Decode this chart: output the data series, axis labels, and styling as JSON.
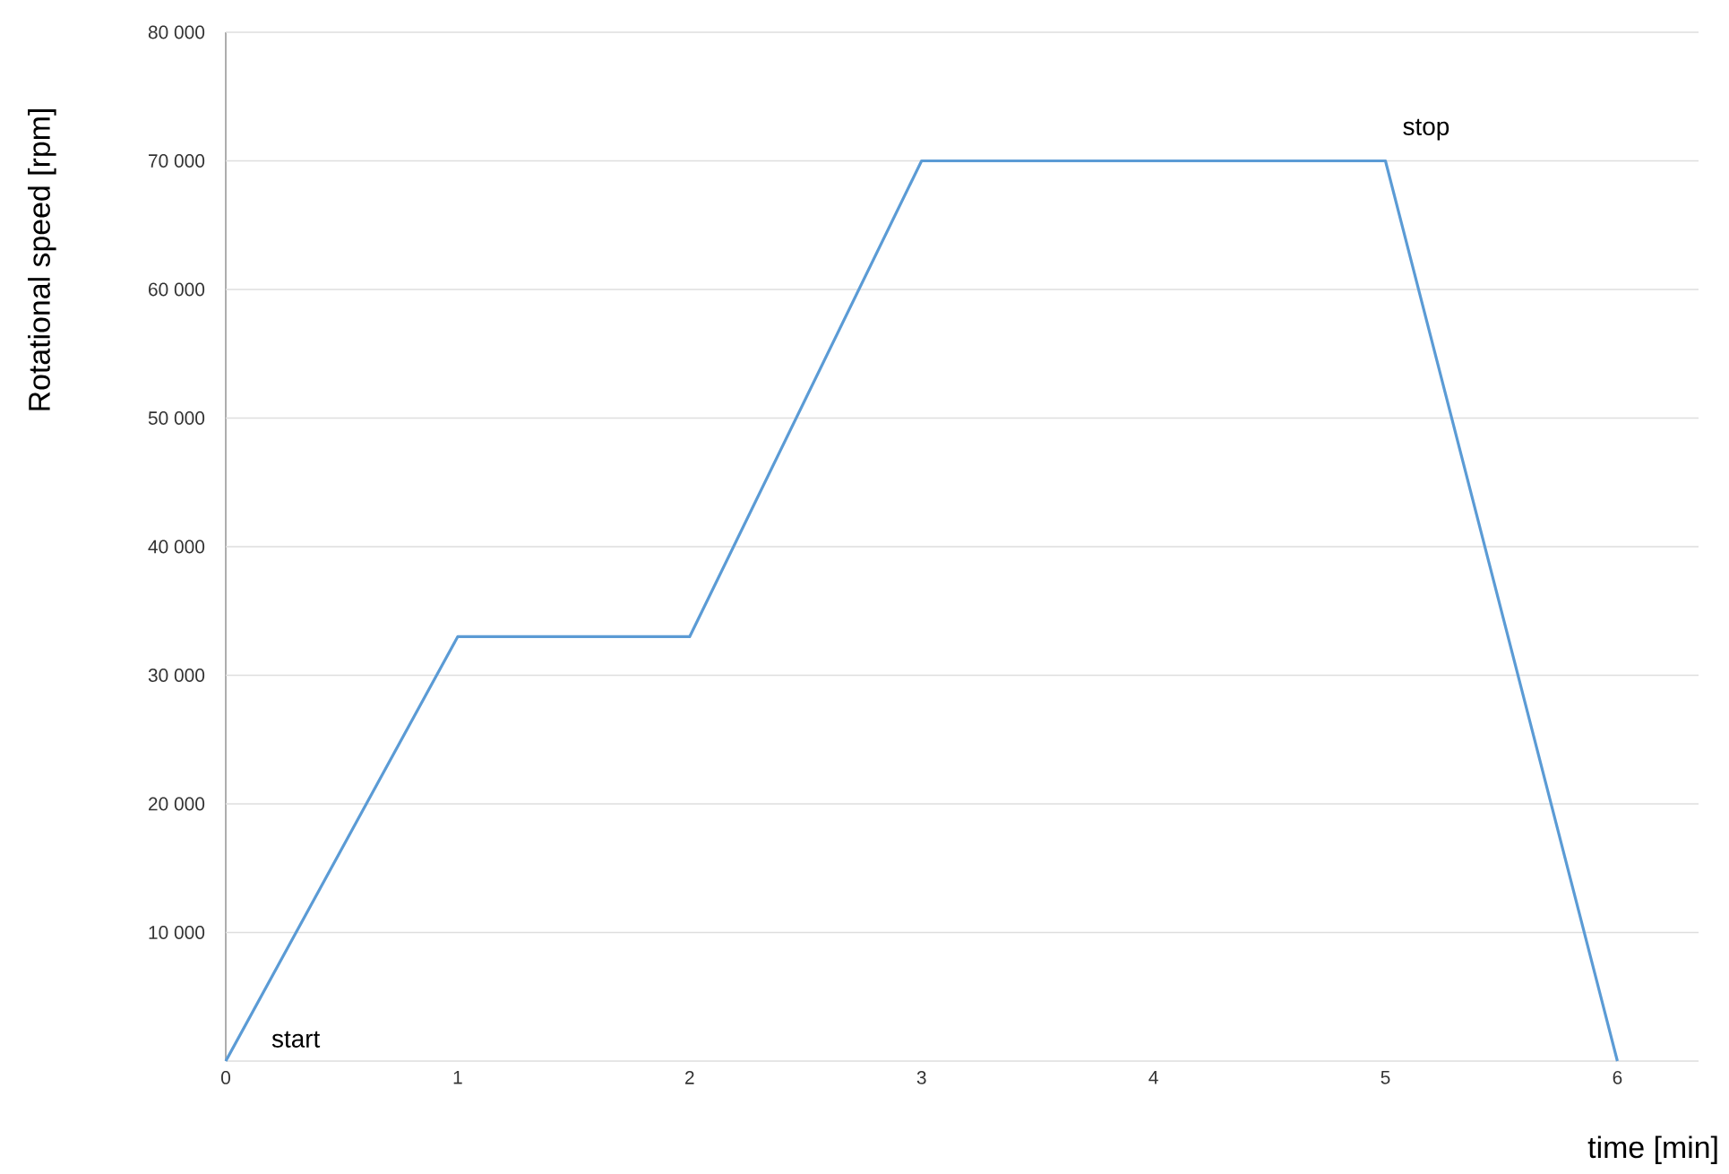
{
  "chart_data": {
    "type": "line",
    "xlabel": "time [min]",
    "ylabel": "Rotational speed [rpm]",
    "x": [
      0,
      1,
      2,
      3,
      5,
      6
    ],
    "series": [
      {
        "color": "#5b9bd5",
        "values": [
          0,
          33000,
          33000,
          70000,
          70000,
          0
        ]
      }
    ],
    "xlim": [
      0,
      6.35
    ],
    "ylim": [
      0,
      80000
    ],
    "xticks": [
      0,
      1,
      2,
      3,
      4,
      5,
      6
    ],
    "yticks": [
      {
        "value": 0,
        "label": null
      },
      {
        "value": 10000,
        "label": "10 000"
      },
      {
        "value": 20000,
        "label": "20 000"
      },
      {
        "value": 30000,
        "label": "30 000"
      },
      {
        "value": 40000,
        "label": "40 000"
      },
      {
        "value": 50000,
        "label": "50 000"
      },
      {
        "value": 60000,
        "label": "60 000"
      },
      {
        "value": 70000,
        "label": "70 000"
      },
      {
        "value": 80000,
        "label": "80 000"
      }
    ],
    "grid": "y",
    "marker": "none",
    "line_style": "solid",
    "annotations": [
      {
        "text": "start",
        "x": 0,
        "y": 0
      },
      {
        "text": "stop",
        "x": 5,
        "y": 70000
      }
    ]
  }
}
